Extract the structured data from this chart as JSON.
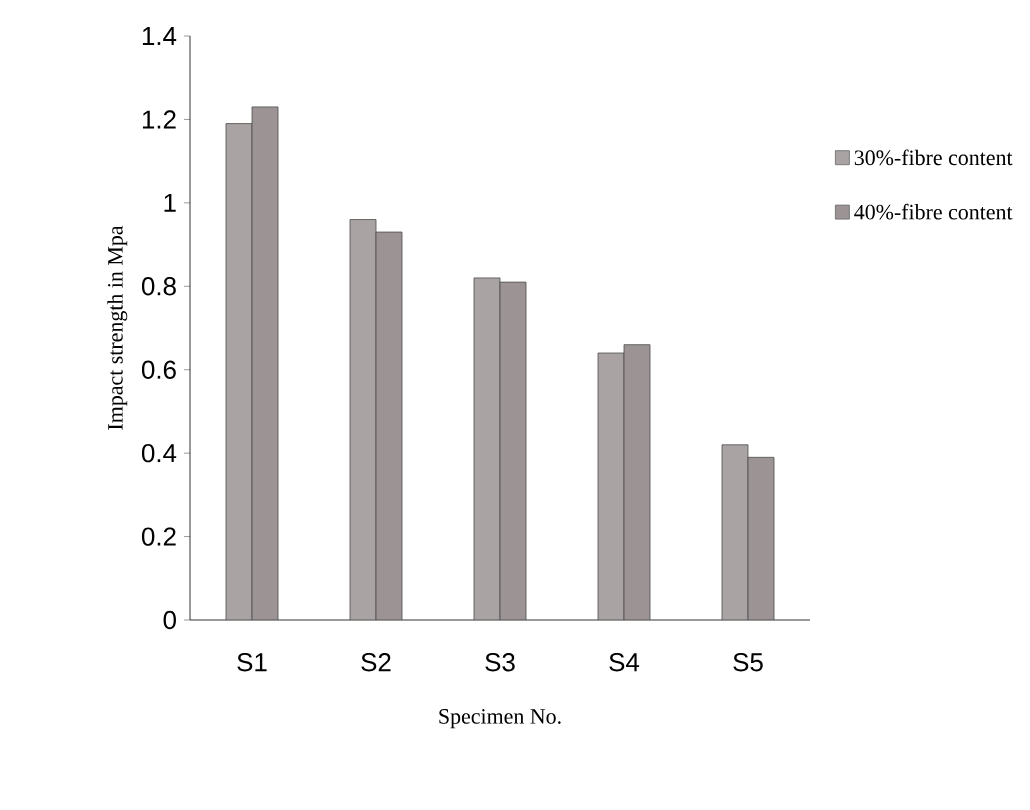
{
  "chart_data": {
    "type": "bar",
    "xlabel": "Specimen No.",
    "ylabel": "Impact strength in Mpa",
    "categories": [
      "S1",
      "S2",
      "S3",
      "S4",
      "S5"
    ],
    "series": [
      {
        "name": "30%-fibre content",
        "color": "#aaa3a3",
        "values": [
          1.19,
          0.96,
          0.82,
          0.64,
          0.42
        ]
      },
      {
        "name": "40%-fibre content",
        "color": "#9c9494",
        "values": [
          1.23,
          0.93,
          0.81,
          0.66,
          0.39
        ]
      }
    ],
    "ylim": [
      0,
      1.4
    ],
    "yticks": [
      0,
      0.2,
      0.4,
      0.6,
      0.8,
      1,
      1.2,
      1.4
    ],
    "grid": false,
    "legend": "right"
  }
}
